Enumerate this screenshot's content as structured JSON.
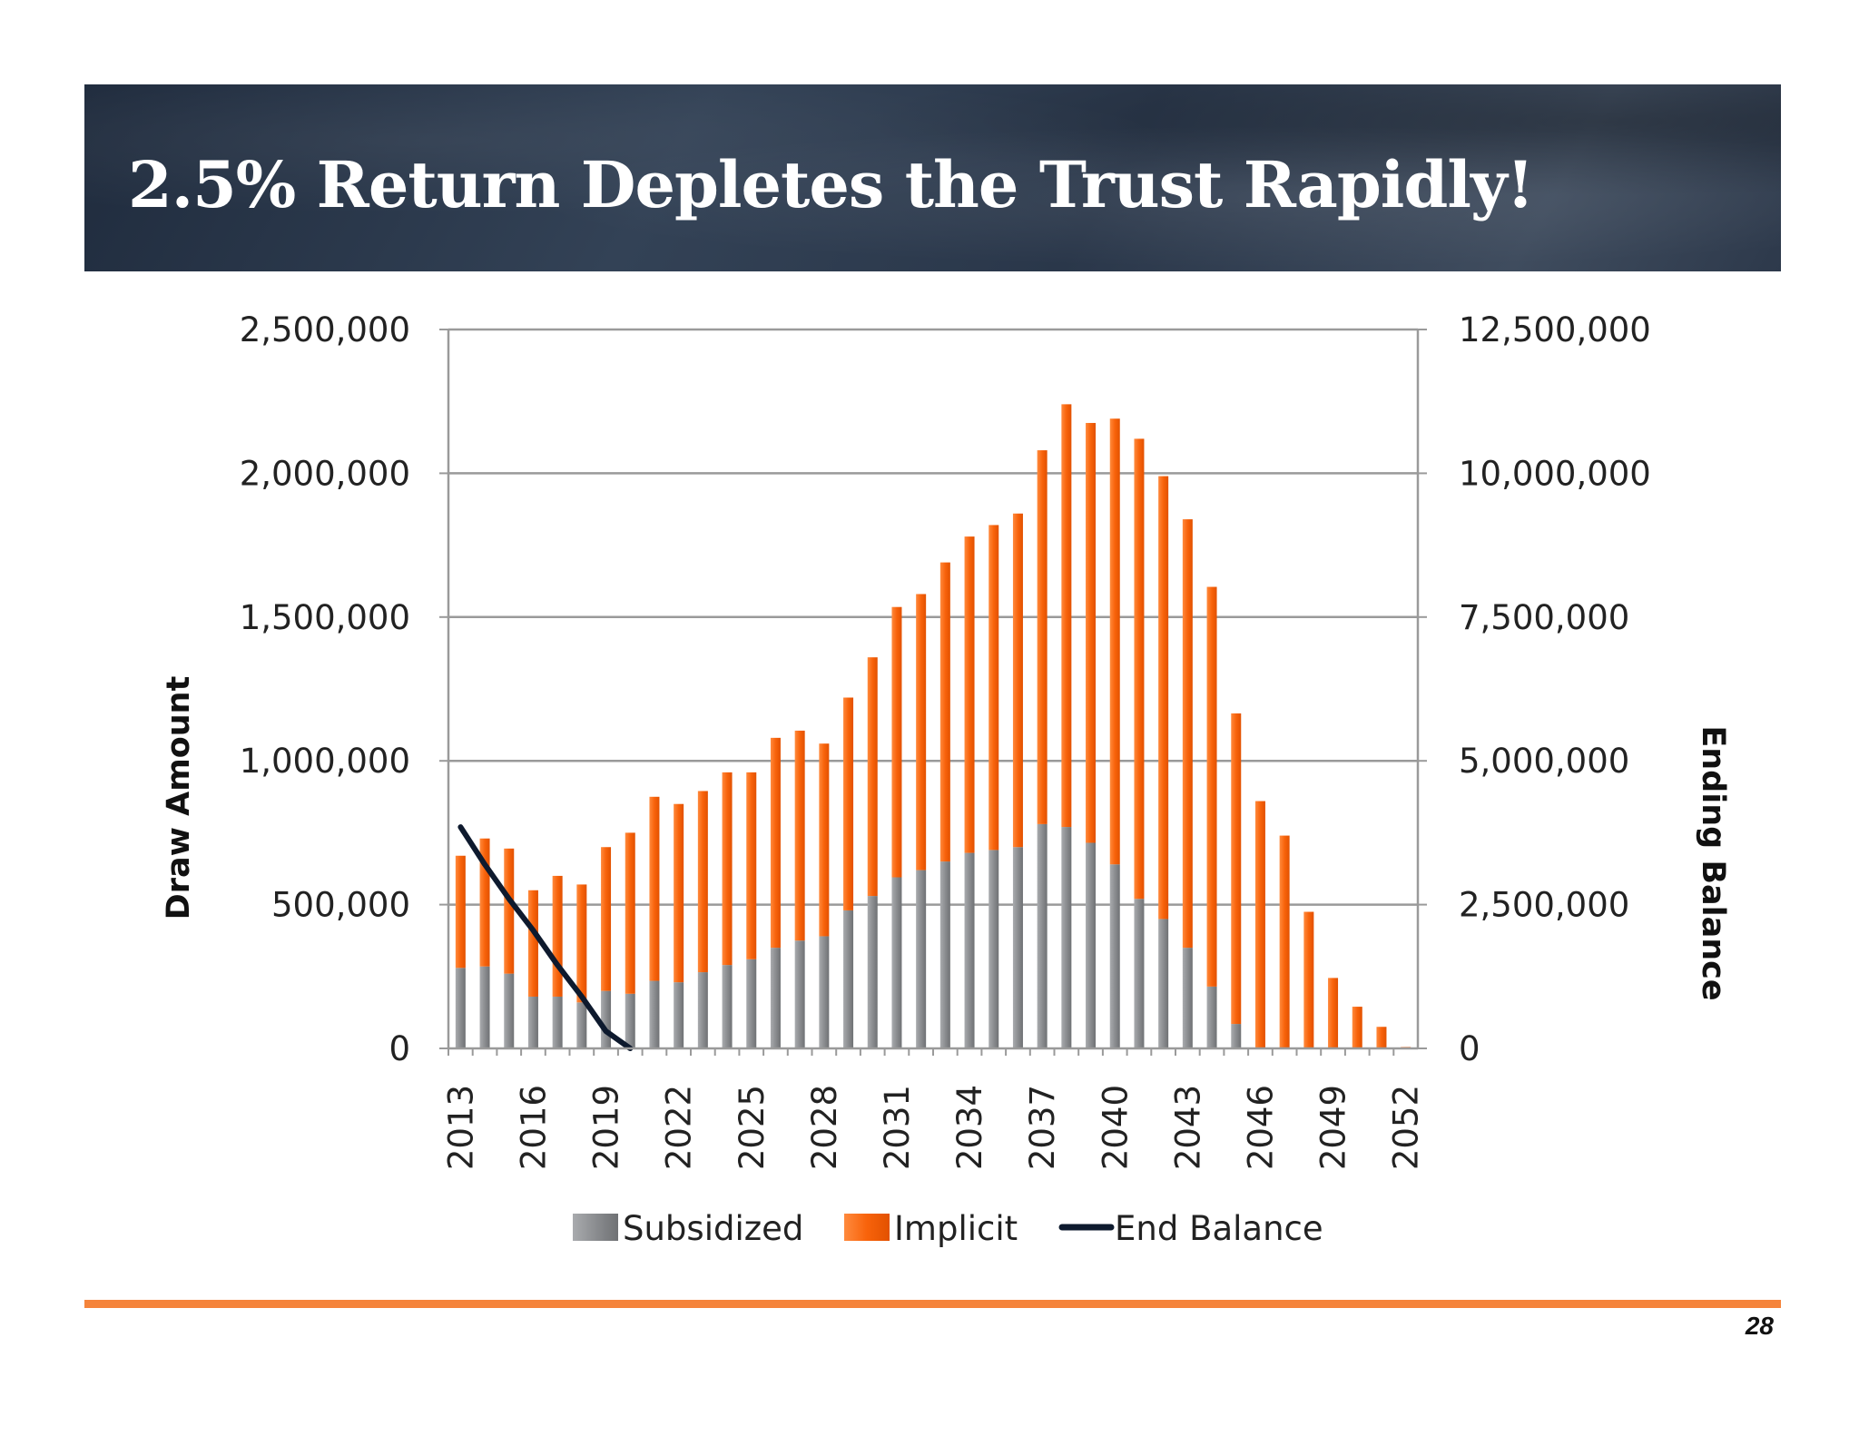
{
  "slide": {
    "title": "2.5% Return Depletes the Trust Rapidly!",
    "page_number": "28"
  },
  "colors": {
    "banner": "#2b3a4e",
    "subsidized": "#8b8d90",
    "implicit": "#f8630b",
    "end_balance": "#0e1a2e",
    "footer_line": "#f5843b"
  },
  "chart_data": {
    "type": "bar",
    "stacked": true,
    "categories": [
      "2013",
      "2014",
      "2015",
      "2016",
      "2017",
      "2018",
      "2019",
      "2020",
      "2021",
      "2022",
      "2023",
      "2024",
      "2025",
      "2026",
      "2027",
      "2028",
      "2029",
      "2030",
      "2031",
      "2032",
      "2033",
      "2034",
      "2035",
      "2036",
      "2037",
      "2038",
      "2039",
      "2040",
      "2041",
      "2042",
      "2043",
      "2044",
      "2045",
      "2046",
      "2047",
      "2048",
      "2049",
      "2050",
      "2051",
      "2052"
    ],
    "x_tick_labels": [
      "2013",
      "2016",
      "2019",
      "2022",
      "2025",
      "2028",
      "2031",
      "2034",
      "2037",
      "2040",
      "2043",
      "2046",
      "2049",
      "2052"
    ],
    "series": [
      {
        "name": "Subsidized",
        "axis": "left",
        "values": [
          280000,
          285000,
          260000,
          180000,
          180000,
          160000,
          200000,
          190000,
          235000,
          230000,
          265000,
          290000,
          310000,
          350000,
          375000,
          390000,
          480000,
          530000,
          595000,
          620000,
          650000,
          680000,
          690000,
          700000,
          780000,
          770000,
          715000,
          640000,
          520000,
          450000,
          350000,
          215000,
          85000,
          0,
          0,
          0,
          0,
          0,
          0,
          0
        ]
      },
      {
        "name": "Implicit",
        "axis": "left",
        "values": [
          390000,
          445000,
          435000,
          370000,
          420000,
          410000,
          500000,
          560000,
          640000,
          620000,
          630000,
          670000,
          650000,
          730000,
          730000,
          670000,
          740000,
          830000,
          940000,
          960000,
          1040000,
          1100000,
          1130000,
          1160000,
          1300000,
          1470000,
          1460000,
          1550000,
          1600000,
          1540000,
          1490000,
          1390000,
          1080000,
          860000,
          740000,
          475000,
          245000,
          145000,
          75000,
          5000
        ]
      },
      {
        "name": "End Balance",
        "type": "line",
        "axis": "right",
        "x": [
          "2013",
          "2014",
          "2015",
          "2016",
          "2017",
          "2018",
          "2019",
          "2020"
        ],
        "values": [
          3850000,
          3200000,
          2600000,
          2050000,
          1450000,
          900000,
          300000,
          0
        ]
      }
    ],
    "y_left": {
      "label": "Draw Amount",
      "ylim": [
        0,
        2500000
      ],
      "ticks": [
        "0",
        "500,000",
        "1,000,000",
        "1,500,000",
        "2,000,000",
        "2,500,000"
      ]
    },
    "y_right": {
      "label": "Ending Balance",
      "ylim": [
        0,
        12500000
      ],
      "ticks": [
        "0",
        "2,500,000",
        "5,000,000",
        "7,500,000",
        "10,000,000",
        "12,500,000"
      ]
    },
    "grid": true,
    "legend": {
      "position": "bottom",
      "entries": [
        "Subsidized",
        "Implicit",
        "End Balance"
      ]
    }
  }
}
